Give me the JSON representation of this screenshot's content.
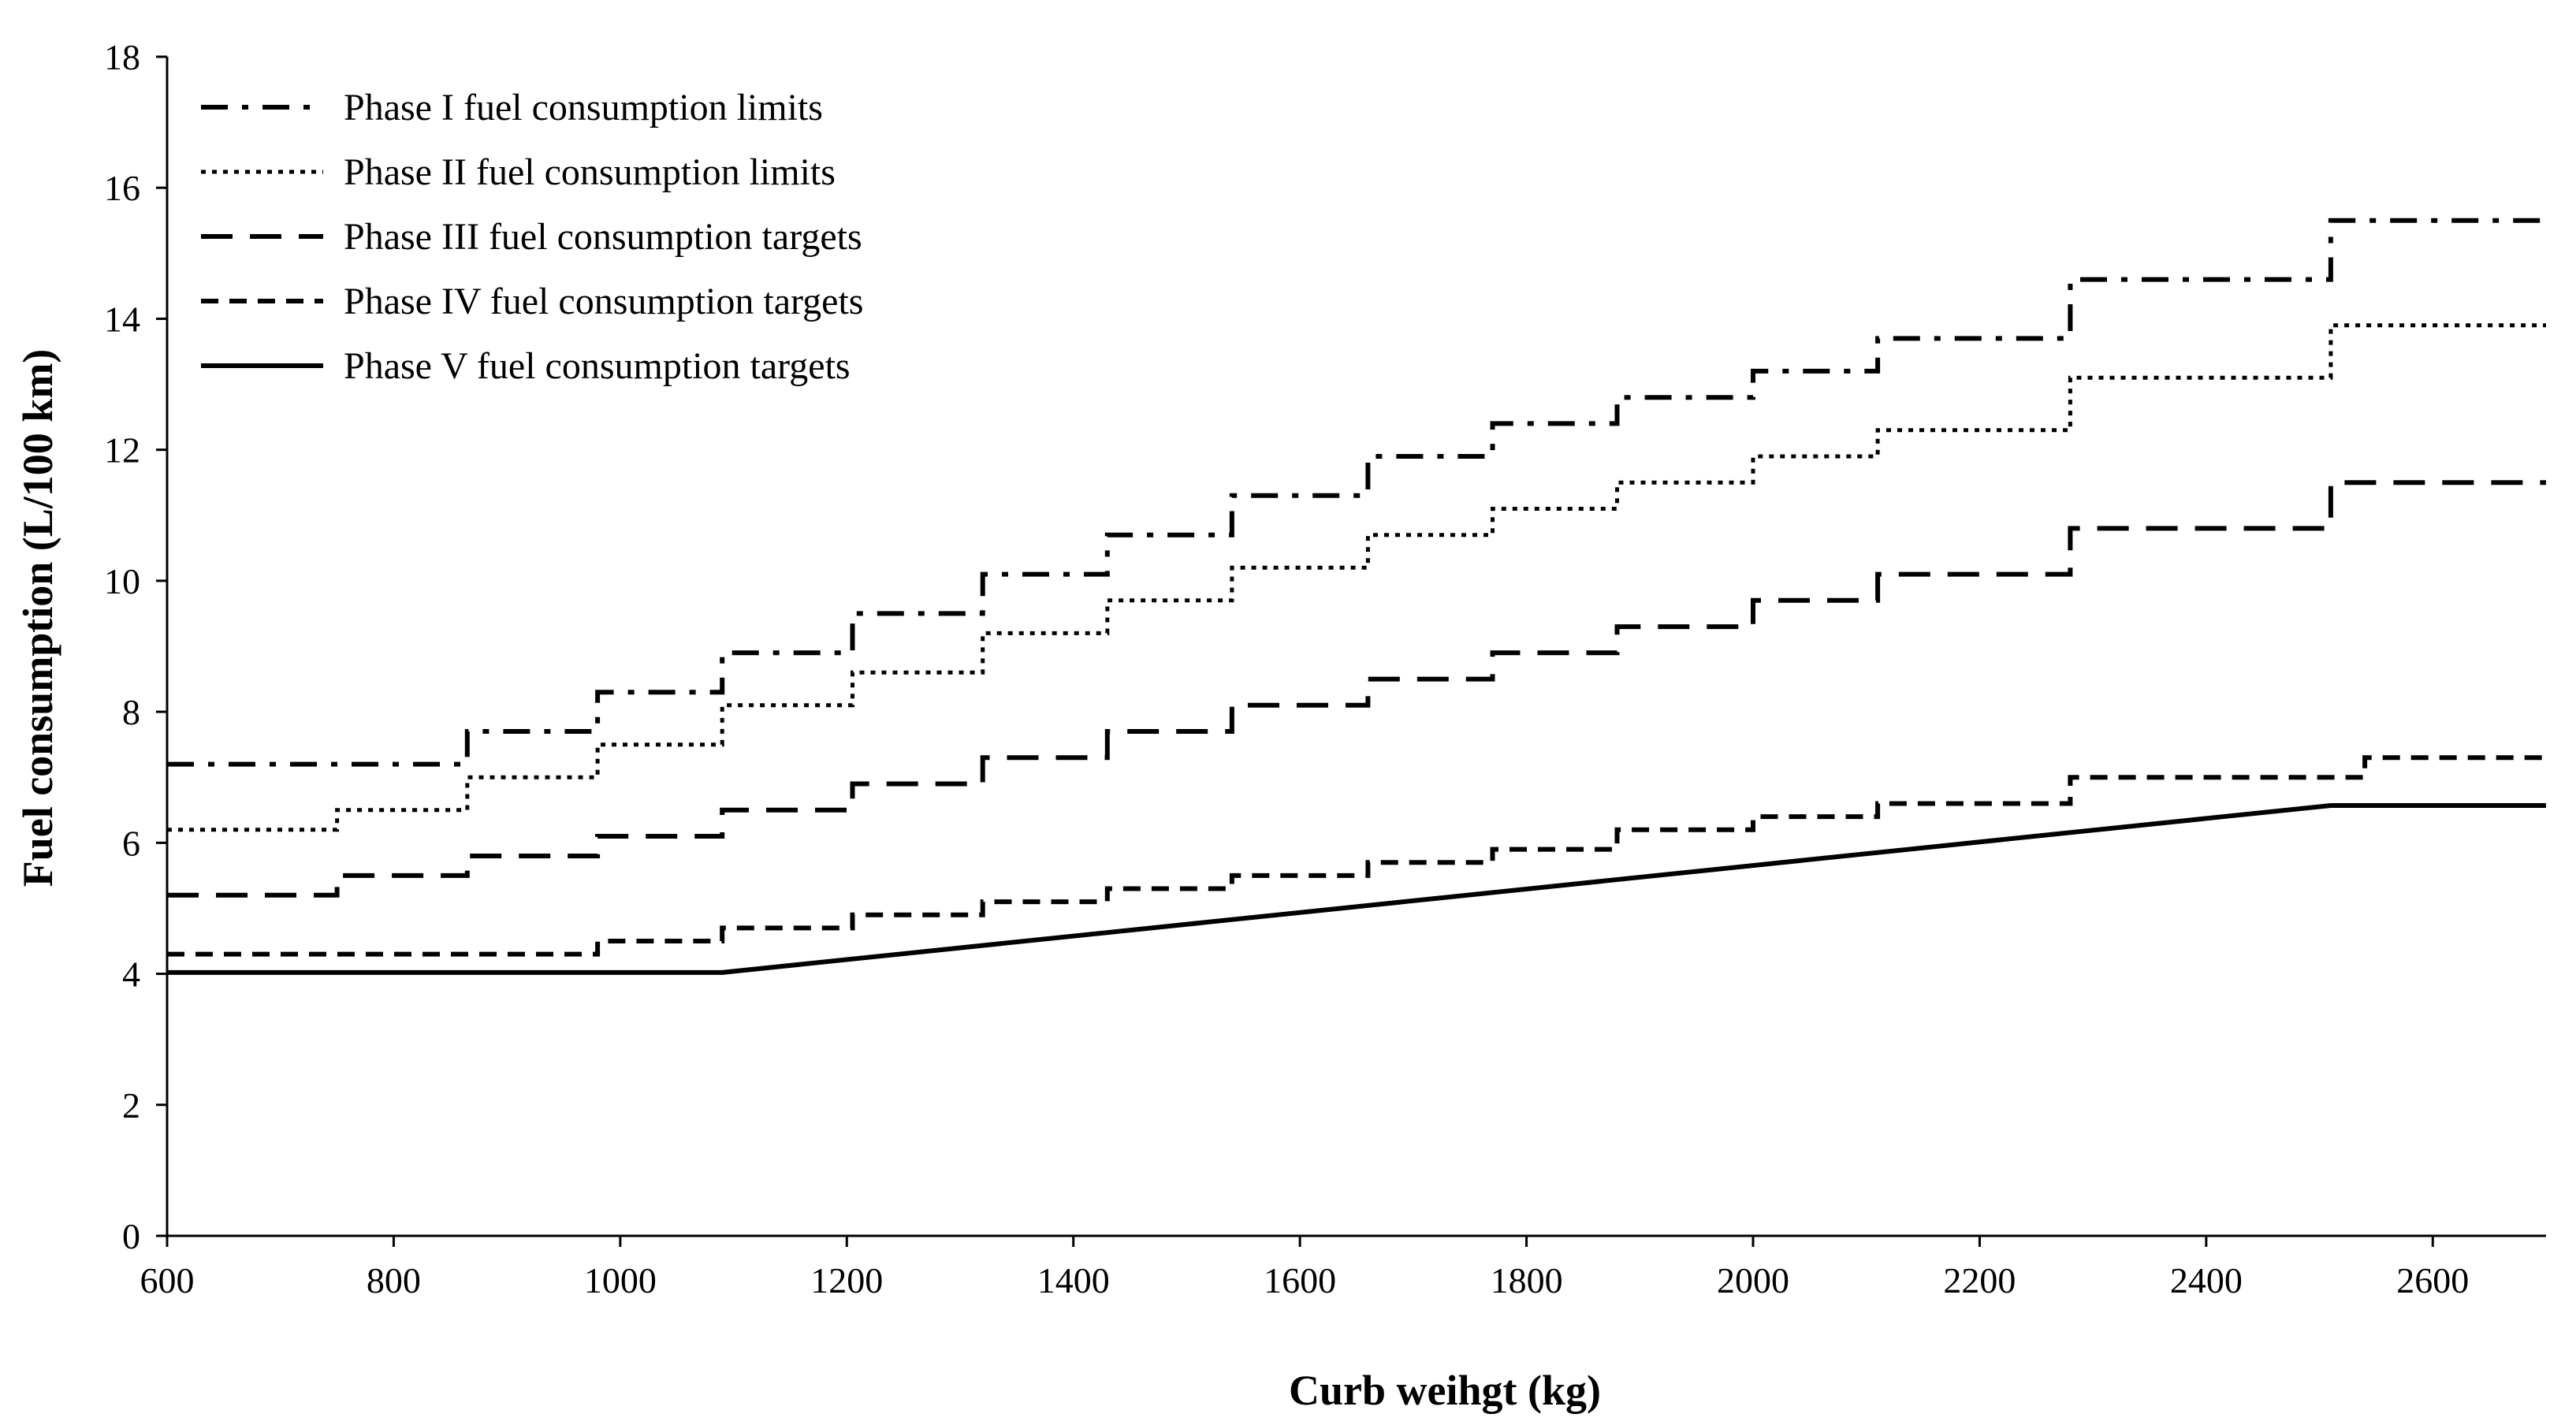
{
  "chart_data": {
    "type": "line",
    "title": "",
    "xlabel": "Curb weihgt (kg)",
    "ylabel": "Fuel consumption (L/100 km)",
    "xlim": [
      600,
      2700
    ],
    "ylim": [
      0,
      18
    ],
    "xticks": [
      600,
      800,
      1000,
      1200,
      1400,
      1600,
      1800,
      2000,
      2200,
      2400,
      2600
    ],
    "yticks": [
      0,
      2,
      4,
      6,
      8,
      10,
      12,
      14,
      16,
      18
    ],
    "grid": false,
    "legend_position": "top-left",
    "series": [
      {
        "name": "Phase I fuel consumption limits",
        "style": "dash-dot",
        "step": true,
        "breaks": [
          600,
          865,
          980,
          1090,
          1205,
          1320,
          1430,
          1540,
          1660,
          1770,
          1880,
          2000,
          2110,
          2280,
          2510,
          2700
        ],
        "values": [
          7.2,
          7.7,
          8.3,
          8.9,
          9.5,
          10.1,
          10.7,
          11.3,
          11.9,
          12.4,
          12.8,
          13.2,
          13.7,
          14.6,
          15.5
        ]
      },
      {
        "name": "Phase II fuel consumption limits",
        "style": "dotted",
        "step": true,
        "breaks": [
          600,
          750,
          865,
          980,
          1090,
          1205,
          1320,
          1430,
          1540,
          1660,
          1770,
          1880,
          2000,
          2110,
          2280,
          2510,
          2700
        ],
        "values": [
          6.2,
          6.5,
          7.0,
          7.5,
          8.1,
          8.6,
          9.2,
          9.7,
          10.2,
          10.7,
          11.1,
          11.5,
          11.9,
          12.3,
          13.1,
          13.9
        ]
      },
      {
        "name": "Phase III fuel consumption targets",
        "style": "dashed",
        "step": true,
        "breaks": [
          600,
          750,
          865,
          980,
          1090,
          1205,
          1320,
          1430,
          1540,
          1660,
          1770,
          1880,
          2000,
          2110,
          2280,
          2510,
          2700
        ],
        "values": [
          5.2,
          5.5,
          5.8,
          6.1,
          6.5,
          6.9,
          7.3,
          7.7,
          8.1,
          8.5,
          8.9,
          9.3,
          9.7,
          10.1,
          10.8,
          11.5
        ]
      },
      {
        "name": "Phase IV fuel consumption targets",
        "style": "short-dashed",
        "step": true,
        "breaks": [
          600,
          980,
          1090,
          1205,
          1320,
          1430,
          1540,
          1660,
          1770,
          1880,
          2000,
          2110,
          2280,
          2540,
          2700
        ],
        "values": [
          4.3,
          4.5,
          4.7,
          4.9,
          5.1,
          5.3,
          5.5,
          5.7,
          5.9,
          6.2,
          6.4,
          6.6,
          7.0,
          7.3
        ]
      },
      {
        "name": "Phase V fuel consumption targets",
        "style": "solid",
        "step": false,
        "x": [
          600,
          1090,
          2510,
          2700
        ],
        "y": [
          4.02,
          4.02,
          6.57,
          6.57
        ]
      }
    ]
  }
}
